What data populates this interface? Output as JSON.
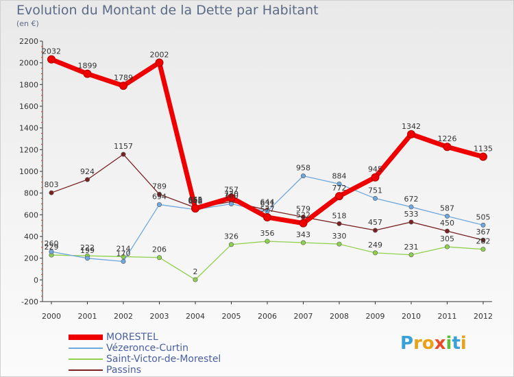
{
  "header": {
    "title": "Evolution du Montant de la Dette par Habitant",
    "subtitle": "(en €)"
  },
  "logo": {
    "text": "Proxiti",
    "letter_colors": [
      "#3aa0d8",
      "#e8a21a",
      "#e8a21a",
      "#e84a2a",
      "#5cbf3a",
      "#3aa0d8",
      "#e8a21a"
    ]
  },
  "chart_data": {
    "type": "line",
    "title": "Evolution du Montant de la Dette par Habitant",
    "subtitle": "(en €)",
    "xlabel": "",
    "ylabel": "",
    "categories": [
      "2000",
      "2001",
      "2002",
      "2003",
      "2004",
      "2005",
      "2006",
      "2007",
      "2008",
      "2009",
      "2010",
      "2011",
      "2012"
    ],
    "ylim": [
      -200,
      2200
    ],
    "yticks": [
      -200,
      0,
      200,
      400,
      600,
      800,
      1000,
      1200,
      1400,
      1600,
      1800,
      2000,
      2200
    ],
    "grid": false,
    "legend_position": "bottom-left",
    "series": [
      {
        "name": "MORESTEL",
        "color": "#ee0000",
        "values": [
          2032,
          1899,
          1789,
          2002,
          658,
          757,
          577,
          522,
          772,
          945,
          1342,
          1226,
          1135
        ],
        "labels": [
          "2032",
          "1899",
          "1789",
          "2002",
          "658",
          "757",
          "577",
          "522",
          "772",
          "945",
          "1342",
          "1226",
          "1135"
        ]
      },
      {
        "name": "Vézeronce-Curtin",
        "color": "#6fa8dc",
        "values": [
          260,
          199,
          170,
          694,
          648,
          700,
          631,
          958,
          884,
          751,
          672,
          587,
          505
        ],
        "labels": [
          "260",
          "199",
          "170",
          "694",
          "648",
          "700",
          "631",
          "958",
          "884",
          "751",
          "672",
          "587",
          "505"
        ]
      },
      {
        "name": "Saint-Victor-de-Morestel",
        "color": "#8fd14f",
        "values": [
          229,
          222,
          214,
          206,
          2,
          326,
          356,
          343,
          330,
          249,
          231,
          305,
          282
        ],
        "labels": [
          "229",
          "222",
          "214",
          "206",
          "2",
          "326",
          "356",
          "343",
          "330",
          "249",
          "231",
          "305",
          "282"
        ]
      },
      {
        "name": "Passins",
        "color": "#7a2222",
        "values": [
          803,
          924,
          1157,
          789,
          665,
          720,
          644,
          579,
          518,
          457,
          533,
          450,
          367
        ],
        "labels": [
          "803",
          "924",
          "1157",
          "789",
          "665",
          "720",
          "644",
          "579",
          "518",
          "457",
          "533",
          "450",
          "367"
        ]
      }
    ]
  }
}
